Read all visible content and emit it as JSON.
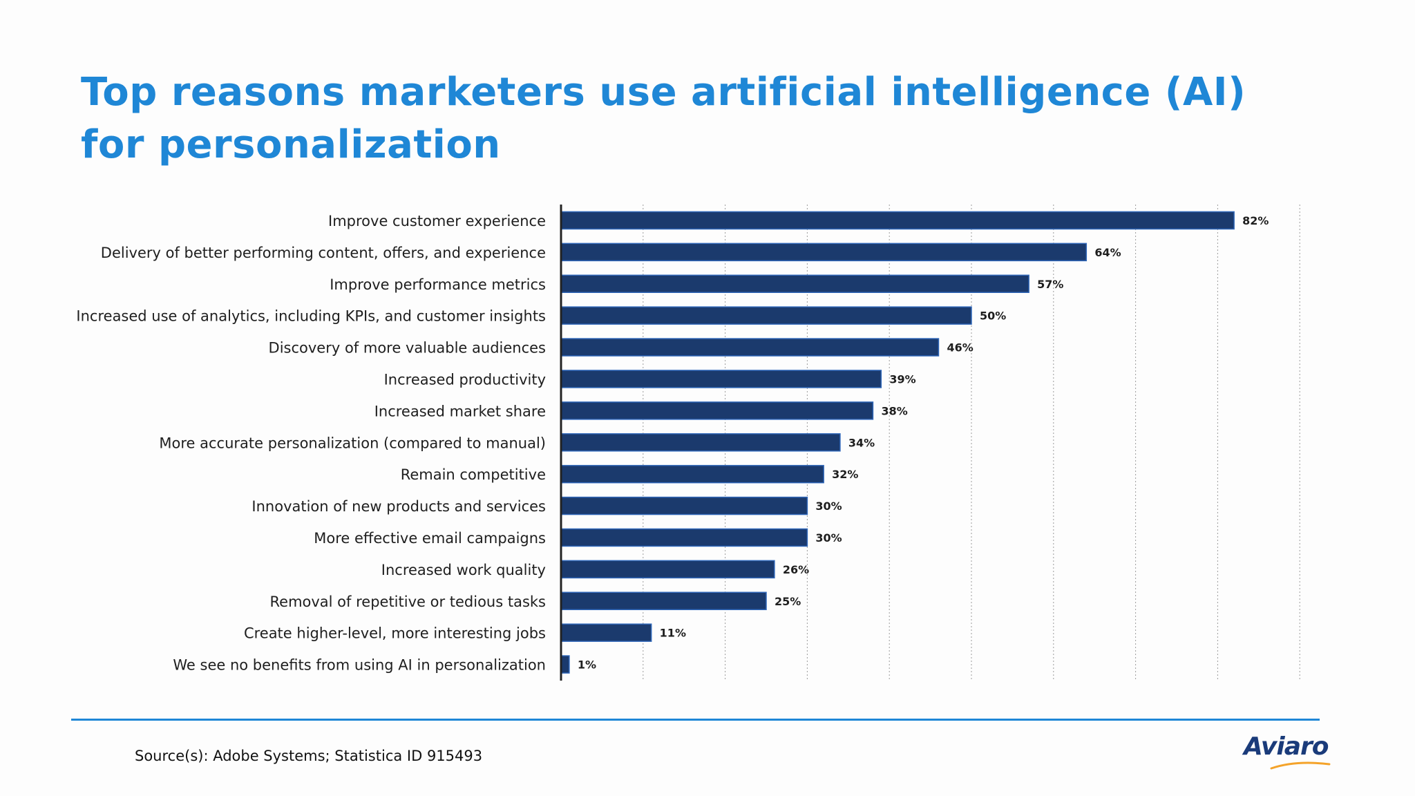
{
  "title": "Top reasons marketers use artificial intelligence (AI) for personalization",
  "source": "Source(s): Adobe Systems; Statistica ID 915493",
  "logo": "Aviaro",
  "colors": {
    "title": "#1f87d6",
    "bar_fill": "#1b3a6d",
    "bar_stroke": "#2f66b8",
    "rule": "#1f87d6",
    "logo": "#1a3b7a",
    "logo_swoosh": "#f4a32a"
  },
  "chart_data": {
    "type": "bar",
    "orientation": "horizontal",
    "categories": [
      "Improve customer experience",
      "Delivery of better performing content, offers, and experience",
      "Improve performance metrics",
      "Increased use of analytics, including KPIs, and customer insights",
      "Discovery of more valuable audiences",
      "Increased productivity",
      "Increased market share",
      "More accurate personalization (compared to manual)",
      "Remain competitive",
      "Innovation of new products and services",
      "More effective email campaigns",
      "Increased work quality",
      "Removal of repetitive or tedious tasks",
      "Create higher-level, more interesting jobs",
      "We see no benefits from using AI in personalization"
    ],
    "values": [
      82,
      64,
      57,
      50,
      46,
      39,
      38,
      34,
      32,
      30,
      30,
      26,
      25,
      11,
      1
    ],
    "value_labels": [
      "82%",
      "64%",
      "57%",
      "50%",
      "46%",
      "39%",
      "38%",
      "34%",
      "32%",
      "30%",
      "30%",
      "26%",
      "25%",
      "11%",
      "1%"
    ],
    "xlim": [
      0,
      90
    ],
    "grid": true
  }
}
